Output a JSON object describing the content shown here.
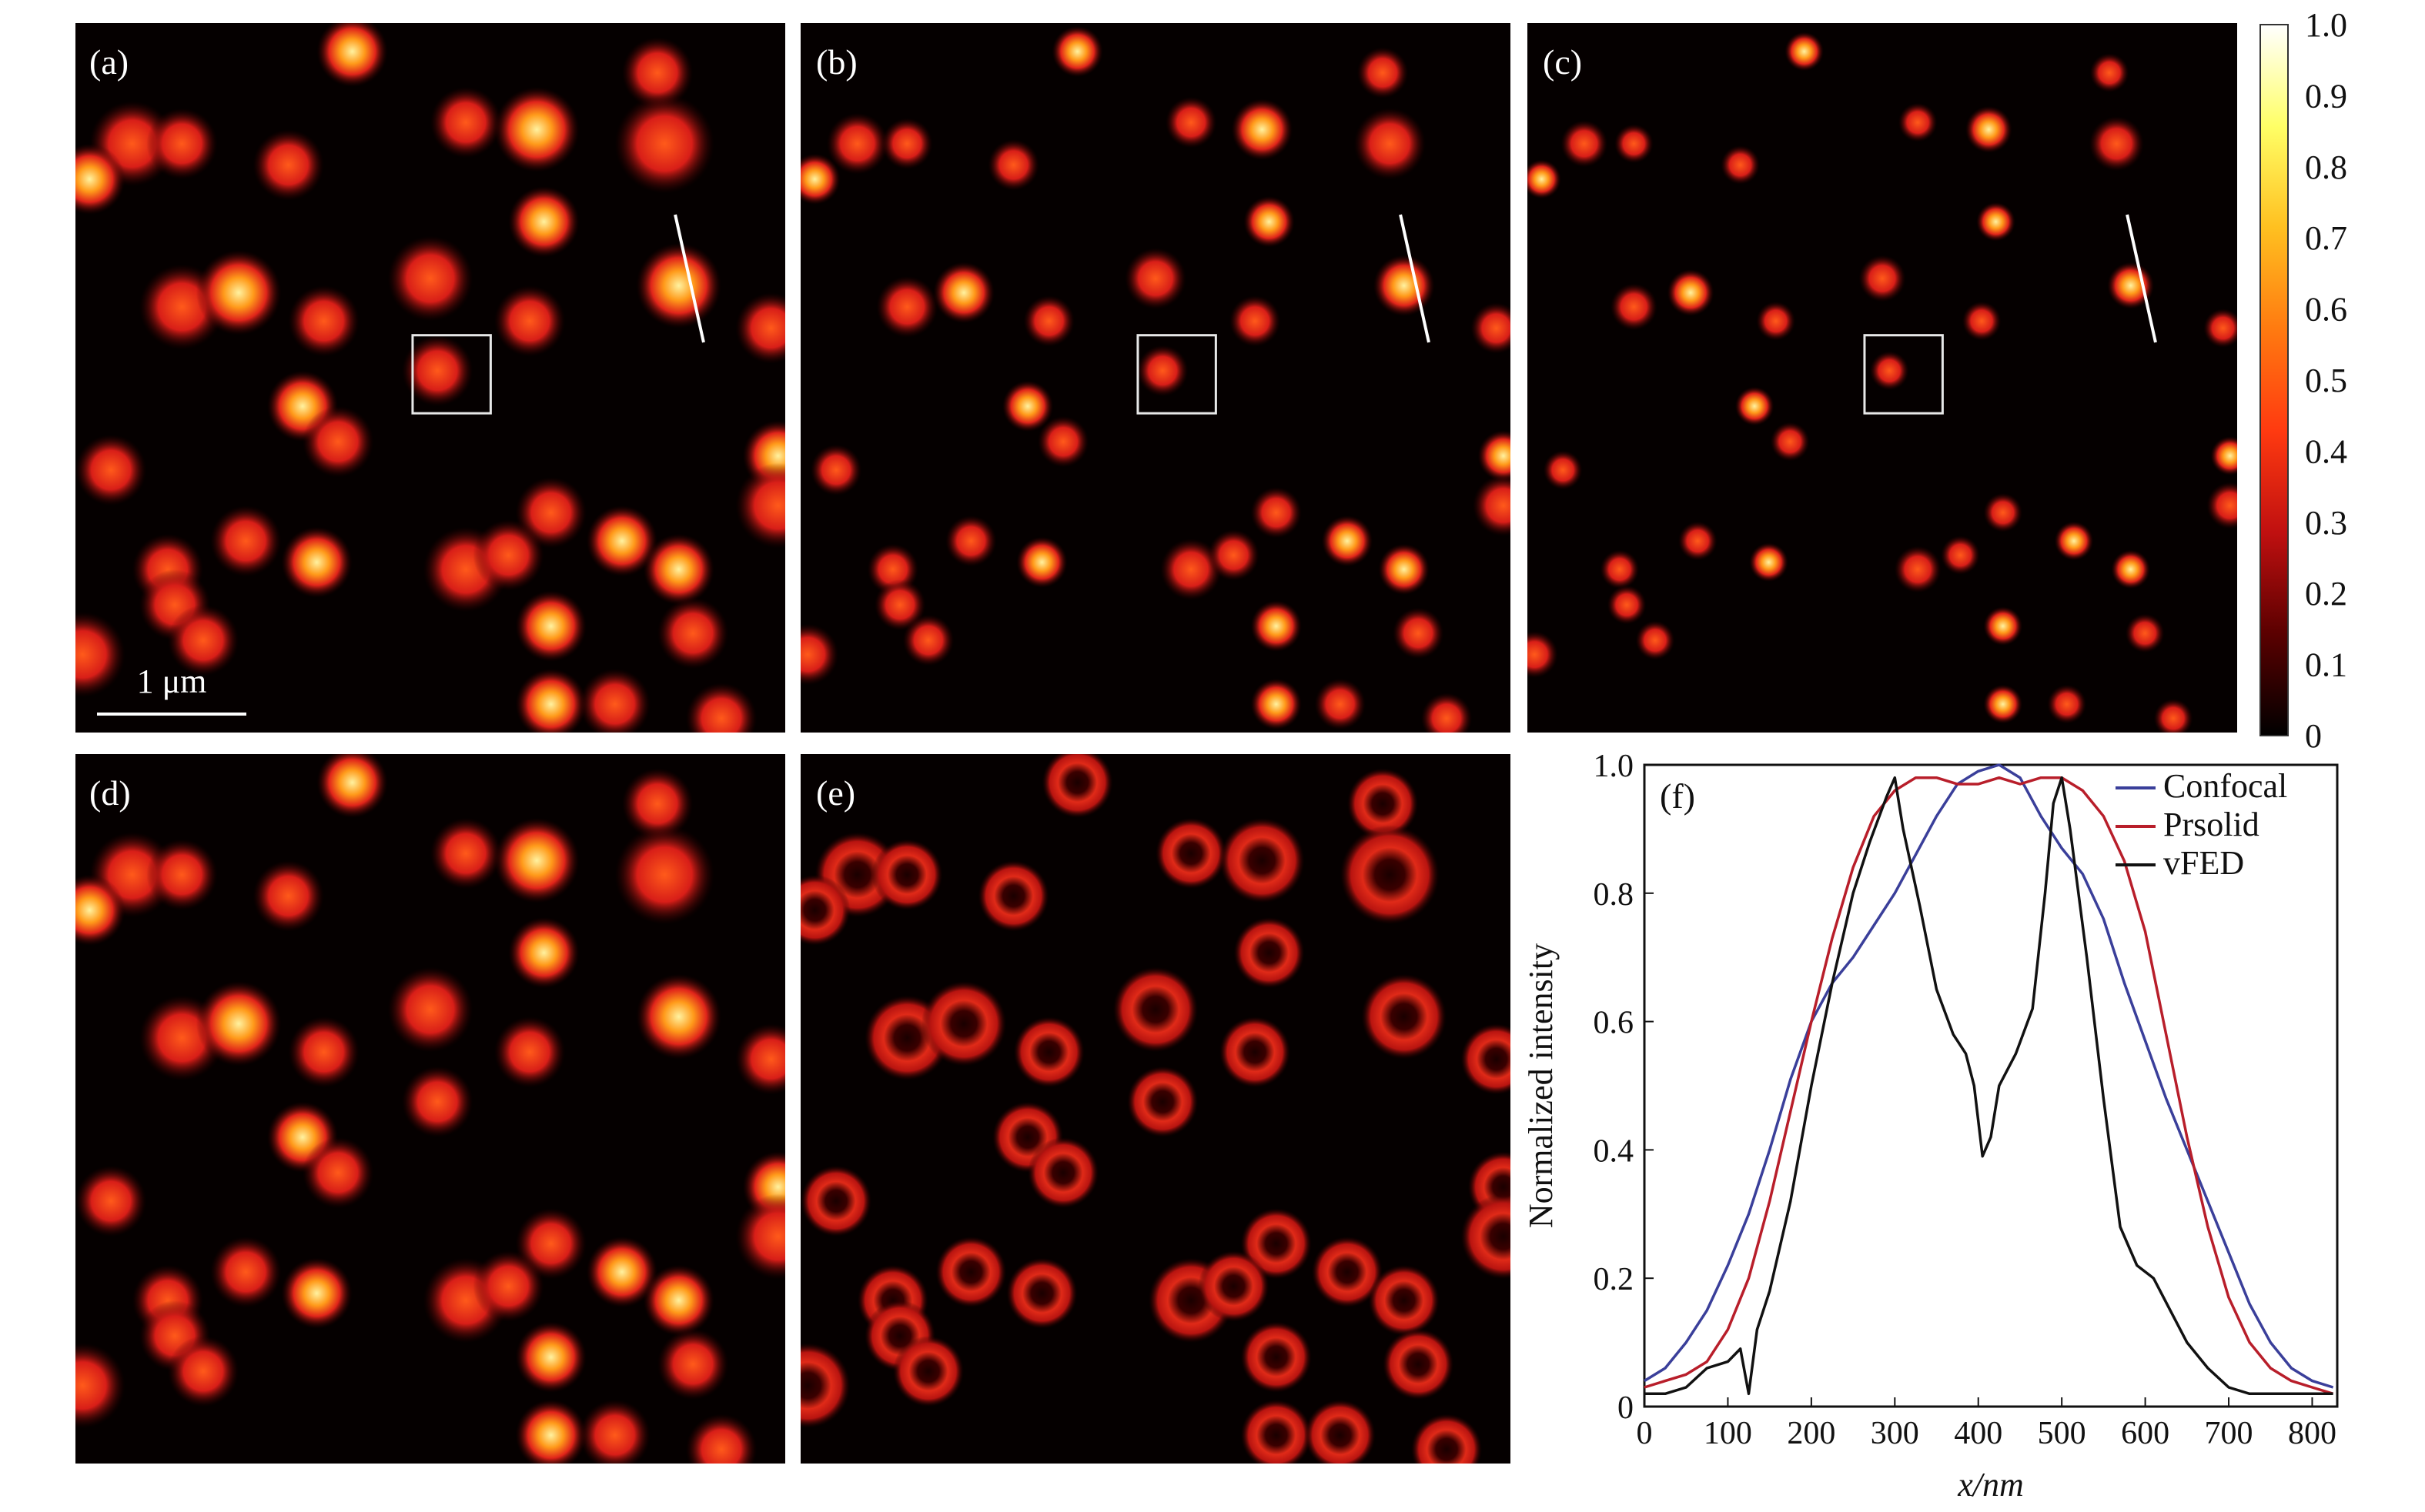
{
  "panels": {
    "a": {
      "label": "(a)"
    },
    "b": {
      "label": "(b)"
    },
    "c": {
      "label": "(c)"
    },
    "d": {
      "label": "(d)"
    },
    "e": {
      "label": "(e)"
    },
    "f": {
      "label": "(f)"
    }
  },
  "scalebar": {
    "label": "1 μm"
  },
  "colorbar": {
    "ticks": [
      "1.0",
      "0.9",
      "0.8",
      "0.7",
      "0.6",
      "0.5",
      "0.4",
      "0.3",
      "0.2",
      "0.1",
      "0"
    ],
    "colors": [
      "#000000",
      "#5a0000",
      "#c01010",
      "#ff3a10",
      "#ff7a10",
      "#ffc020",
      "#ffff66",
      "#ffffff"
    ]
  },
  "chart_data": {
    "type": "line",
    "title": "",
    "xlabel": "x/nm",
    "ylabel": "Normalized intensity",
    "xlim": [
      0,
      830
    ],
    "ylim": [
      0,
      1.0
    ],
    "xticks": [
      "0",
      "100",
      "200",
      "300",
      "400",
      "500",
      "600",
      "700",
      "800"
    ],
    "yticks": [
      "0",
      "0.2",
      "0.4",
      "0.6",
      "0.8",
      "1.0"
    ],
    "legend_position": "top-right",
    "series": [
      {
        "name": "Confocal",
        "color": "#3a3f9a",
        "x": [
          0,
          25,
          50,
          75,
          100,
          125,
          150,
          175,
          200,
          225,
          250,
          275,
          300,
          325,
          350,
          375,
          400,
          425,
          450,
          475,
          500,
          525,
          550,
          575,
          600,
          625,
          650,
          675,
          700,
          725,
          750,
          775,
          800,
          825
        ],
        "y": [
          0.04,
          0.06,
          0.1,
          0.15,
          0.22,
          0.3,
          0.4,
          0.51,
          0.6,
          0.66,
          0.7,
          0.75,
          0.8,
          0.86,
          0.92,
          0.97,
          0.99,
          1.0,
          0.98,
          0.92,
          0.87,
          0.83,
          0.76,
          0.66,
          0.57,
          0.48,
          0.4,
          0.32,
          0.24,
          0.16,
          0.1,
          0.06,
          0.04,
          0.03
        ]
      },
      {
        "name": "Prsolid",
        "color": "#b81e2a",
        "x": [
          0,
          25,
          50,
          75,
          100,
          125,
          150,
          175,
          200,
          225,
          250,
          275,
          300,
          325,
          350,
          375,
          400,
          425,
          450,
          475,
          500,
          525,
          550,
          575,
          600,
          625,
          650,
          675,
          700,
          725,
          750,
          775,
          800,
          825
        ],
        "y": [
          0.03,
          0.04,
          0.05,
          0.07,
          0.12,
          0.2,
          0.32,
          0.46,
          0.6,
          0.73,
          0.84,
          0.92,
          0.96,
          0.98,
          0.98,
          0.97,
          0.97,
          0.98,
          0.97,
          0.98,
          0.98,
          0.96,
          0.92,
          0.85,
          0.74,
          0.58,
          0.42,
          0.28,
          0.17,
          0.1,
          0.06,
          0.04,
          0.03,
          0.02
        ]
      },
      {
        "name": "vFED",
        "color": "#111111",
        "x": [
          0,
          25,
          50,
          75,
          100,
          115,
          125,
          135,
          150,
          175,
          200,
          225,
          250,
          270,
          290,
          300,
          310,
          330,
          350,
          370,
          385,
          395,
          405,
          415,
          425,
          445,
          465,
          480,
          490,
          500,
          510,
          530,
          550,
          570,
          590,
          610,
          630,
          650,
          675,
          700,
          725,
          750,
          775,
          800,
          825
        ],
        "y": [
          0.02,
          0.02,
          0.03,
          0.06,
          0.07,
          0.09,
          0.02,
          0.12,
          0.18,
          0.32,
          0.5,
          0.66,
          0.8,
          0.88,
          0.95,
          0.98,
          0.9,
          0.78,
          0.65,
          0.58,
          0.55,
          0.5,
          0.39,
          0.42,
          0.5,
          0.55,
          0.62,
          0.8,
          0.94,
          0.98,
          0.9,
          0.7,
          0.48,
          0.28,
          0.22,
          0.2,
          0.15,
          0.1,
          0.06,
          0.03,
          0.02,
          0.02,
          0.02,
          0.02,
          0.02
        ]
      }
    ]
  }
}
